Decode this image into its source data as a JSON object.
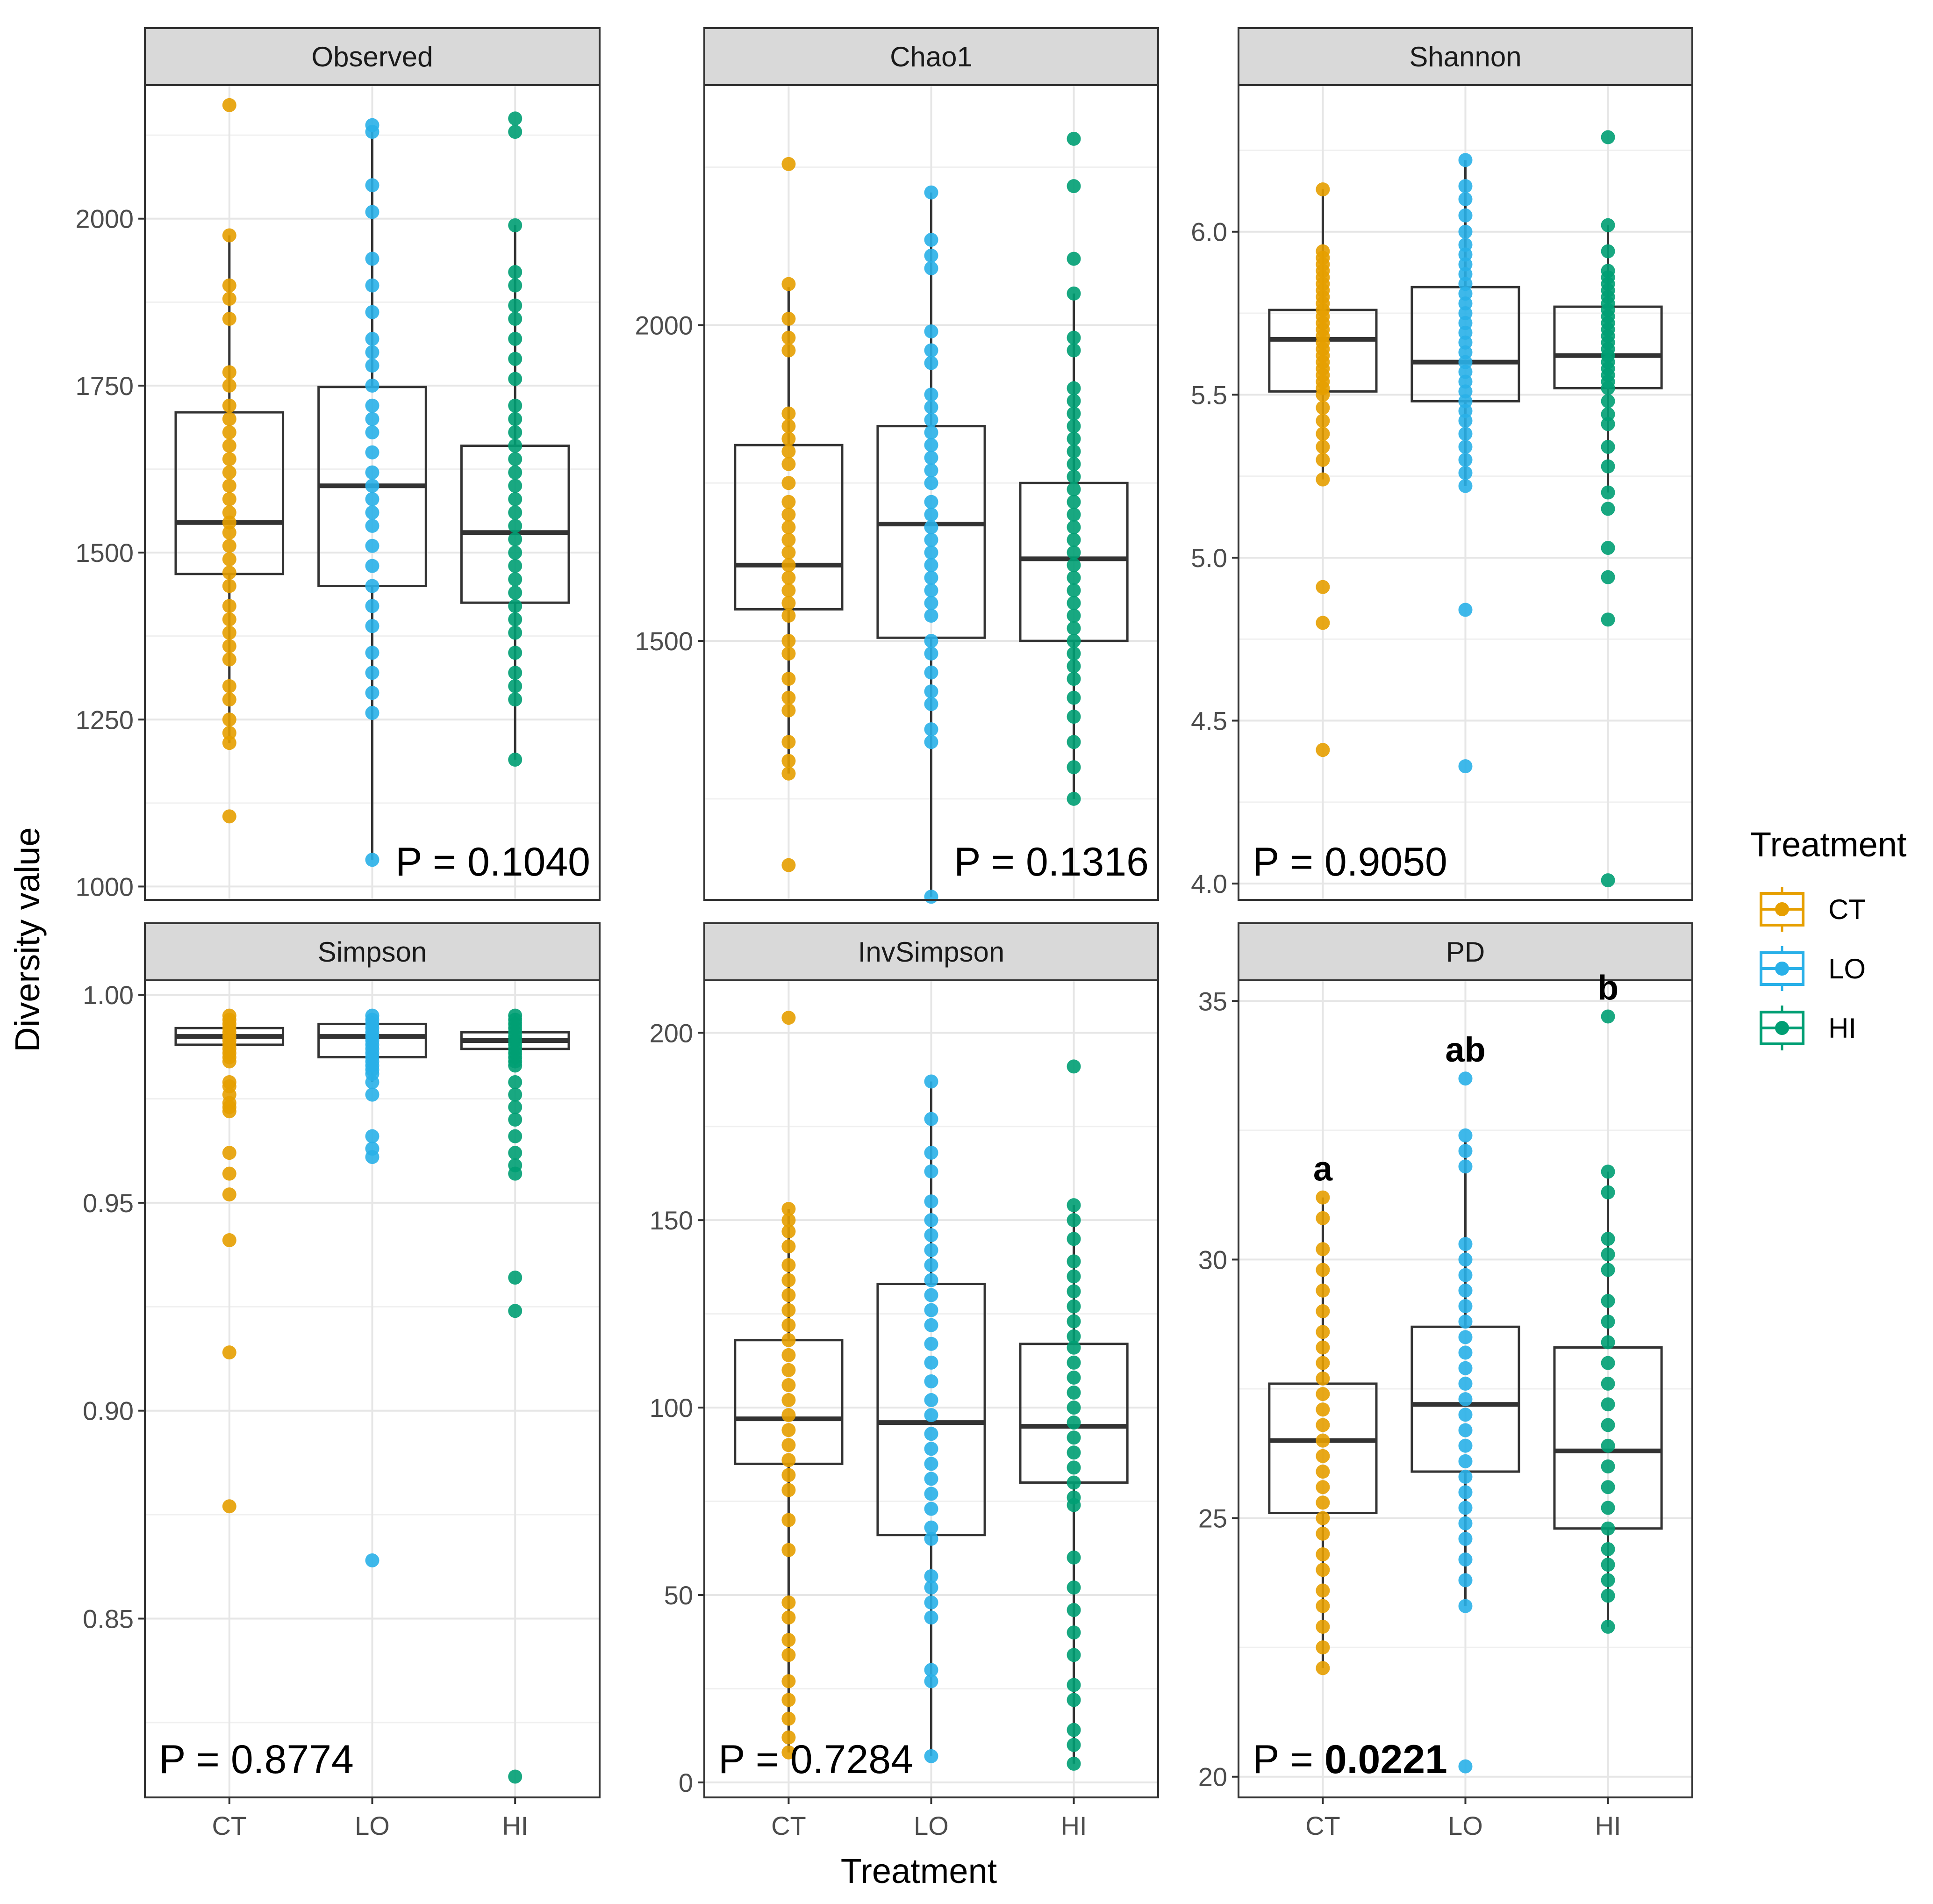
{
  "figure": {
    "y_axis_title": "Diversity value",
    "x_axis_title": "Treatment",
    "legend": {
      "title": "Treatment",
      "items": [
        {
          "label": "CT",
          "color": "#E69F00"
        },
        {
          "label": "LO",
          "color": "#29B0E8"
        },
        {
          "label": "HI",
          "color": "#009E73"
        }
      ]
    }
  },
  "chart_data": [
    {
      "type": "box",
      "title": "Observed",
      "categories": [
        "CT",
        "LO",
        "HI"
      ],
      "ylim": [
        980,
        2200
      ],
      "yticks": [
        1000,
        1250,
        1500,
        1750,
        2000
      ],
      "ytick_labels": [
        "1000",
        "1250",
        "1500",
        "1750",
        "2000"
      ],
      "p_prefix": "P = ",
      "p_value": "0.1040",
      "p_bold": false,
      "p_pos": "bottom-right",
      "groups": [
        {
          "name": "CT",
          "color": "#E69F00",
          "q1": 1468,
          "median": 1545,
          "q3": 1710,
          "whisker_low": 1215,
          "whisker_high": 1975,
          "points": [
            2170,
            1975,
            1900,
            1880,
            1850,
            1770,
            1750,
            1720,
            1700,
            1680,
            1660,
            1640,
            1620,
            1600,
            1580,
            1560,
            1545,
            1530,
            1510,
            1490,
            1470,
            1450,
            1420,
            1400,
            1380,
            1360,
            1340,
            1300,
            1280,
            1250,
            1230,
            1215,
            1105
          ]
        },
        {
          "name": "LO",
          "color": "#29B0E8",
          "q1": 1450,
          "median": 1600,
          "q3": 1748,
          "whisker_low": 1040,
          "whisker_high": 2130,
          "points": [
            2140,
            2130,
            2050,
            2010,
            1940,
            1900,
            1860,
            1820,
            1800,
            1780,
            1750,
            1720,
            1700,
            1680,
            1650,
            1620,
            1600,
            1580,
            1560,
            1540,
            1510,
            1480,
            1450,
            1420,
            1390,
            1350,
            1320,
            1290,
            1260,
            1040
          ]
        },
        {
          "name": "HI",
          "color": "#009E73",
          "q1": 1425,
          "median": 1530,
          "q3": 1660,
          "whisker_low": 1190,
          "whisker_high": 1990,
          "points": [
            2150,
            2130,
            1990,
            1920,
            1900,
            1870,
            1850,
            1820,
            1790,
            1760,
            1720,
            1700,
            1680,
            1660,
            1640,
            1620,
            1600,
            1580,
            1560,
            1540,
            1520,
            1500,
            1480,
            1460,
            1440,
            1420,
            1400,
            1380,
            1350,
            1320,
            1300,
            1280,
            1190
          ]
        }
      ]
    },
    {
      "type": "box",
      "title": "Chao1",
      "categories": [
        "CT",
        "LO",
        "HI"
      ],
      "ylim": [
        1090,
        2380
      ],
      "yticks": [
        1500,
        2000
      ],
      "ytick_labels": [
        "1500",
        "2000"
      ],
      "p_prefix": "P = ",
      "p_value": "0.1316",
      "p_bold": false,
      "p_pos": "bottom-right",
      "groups": [
        {
          "name": "CT",
          "color": "#E69F00",
          "q1": 1550,
          "median": 1620,
          "q3": 1810,
          "whisker_low": 1290,
          "whisker_high": 2060,
          "points": [
            2255,
            2065,
            2010,
            1980,
            1960,
            1860,
            1840,
            1820,
            1800,
            1780,
            1750,
            1720,
            1700,
            1680,
            1660,
            1640,
            1620,
            1600,
            1580,
            1560,
            1540,
            1500,
            1480,
            1440,
            1410,
            1390,
            1340,
            1310,
            1290,
            1145
          ]
        },
        {
          "name": "LO",
          "color": "#29B0E8",
          "q1": 1505,
          "median": 1685,
          "q3": 1840,
          "whisker_low": 1095,
          "whisker_high": 2210,
          "points": [
            2210,
            2135,
            2110,
            2090,
            1990,
            1960,
            1940,
            1890,
            1870,
            1850,
            1830,
            1810,
            1790,
            1770,
            1750,
            1720,
            1700,
            1680,
            1660,
            1640,
            1620,
            1600,
            1580,
            1560,
            1540,
            1500,
            1480,
            1450,
            1420,
            1400,
            1360,
            1340,
            1095
          ]
        },
        {
          "name": "HI",
          "color": "#009E73",
          "q1": 1500,
          "median": 1630,
          "q3": 1750,
          "whisker_low": 1250,
          "whisker_high": 2050,
          "points": [
            2295,
            2220,
            2105,
            2050,
            1980,
            1960,
            1900,
            1880,
            1860,
            1840,
            1820,
            1800,
            1780,
            1760,
            1740,
            1720,
            1700,
            1680,
            1660,
            1640,
            1620,
            1600,
            1580,
            1560,
            1540,
            1520,
            1500,
            1480,
            1460,
            1440,
            1410,
            1380,
            1340,
            1300,
            1250
          ]
        }
      ]
    },
    {
      "type": "box",
      "title": "Shannon",
      "categories": [
        "CT",
        "LO",
        "HI"
      ],
      "ylim": [
        3.95,
        6.45
      ],
      "yticks": [
        4.0,
        4.5,
        5.0,
        5.5,
        6.0
      ],
      "ytick_labels": [
        "4.0",
        "4.5",
        "5.0",
        "5.5",
        "6.0"
      ],
      "p_prefix": "P = ",
      "p_value": "0.9050",
      "p_bold": false,
      "p_pos": "bottom-left",
      "groups": [
        {
          "name": "CT",
          "color": "#E69F00",
          "q1": 5.51,
          "median": 5.67,
          "q3": 5.76,
          "whisker_low": 5.24,
          "whisker_high": 6.13,
          "points": [
            6.13,
            5.94,
            5.92,
            5.9,
            5.88,
            5.86,
            5.84,
            5.82,
            5.8,
            5.78,
            5.76,
            5.74,
            5.72,
            5.7,
            5.68,
            5.66,
            5.64,
            5.62,
            5.6,
            5.58,
            5.56,
            5.54,
            5.52,
            5.5,
            5.46,
            5.42,
            5.38,
            5.34,
            5.3,
            5.24,
            4.91,
            4.8,
            4.41
          ]
        },
        {
          "name": "LO",
          "color": "#29B0E8",
          "q1": 5.48,
          "median": 5.6,
          "q3": 5.83,
          "whisker_low": 5.22,
          "whisker_high": 6.22,
          "points": [
            6.22,
            6.14,
            6.1,
            6.05,
            6.0,
            5.96,
            5.93,
            5.9,
            5.87,
            5.84,
            5.81,
            5.78,
            5.75,
            5.72,
            5.69,
            5.66,
            5.63,
            5.6,
            5.57,
            5.54,
            5.51,
            5.48,
            5.45,
            5.42,
            5.38,
            5.34,
            5.3,
            5.26,
            5.22,
            4.84,
            4.36
          ]
        },
        {
          "name": "HI",
          "color": "#009E73",
          "q1": 5.52,
          "median": 5.62,
          "q3": 5.77,
          "whisker_low": 5.2,
          "whisker_high": 6.02,
          "points": [
            6.29,
            6.02,
            5.94,
            5.88,
            5.86,
            5.84,
            5.82,
            5.8,
            5.78,
            5.76,
            5.74,
            5.72,
            5.7,
            5.68,
            5.66,
            5.64,
            5.62,
            5.6,
            5.58,
            5.56,
            5.54,
            5.52,
            5.48,
            5.44,
            5.41,
            5.34,
            5.28,
            5.2,
            5.15,
            5.03,
            4.94,
            4.81,
            4.01
          ]
        }
      ]
    },
    {
      "type": "box",
      "title": "Simpson",
      "categories": [
        "CT",
        "LO",
        "HI"
      ],
      "ylim": [
        0.807,
        1.0035
      ],
      "yticks": [
        0.85,
        0.9,
        0.95,
        1.0
      ],
      "ytick_labels": [
        "0.85",
        "0.90",
        "0.95",
        "1.00"
      ],
      "p_prefix": "P = ",
      "p_value": "0.8774",
      "p_bold": false,
      "p_pos": "bottom-left",
      "groups": [
        {
          "name": "CT",
          "color": "#E69F00",
          "q1": 0.988,
          "median": 0.99,
          "q3": 0.992,
          "whisker_low": 0.984,
          "whisker_high": 0.995,
          "points": [
            0.995,
            0.994,
            0.993,
            0.992,
            0.991,
            0.99,
            0.989,
            0.988,
            0.987,
            0.986,
            0.985,
            0.984,
            0.979,
            0.978,
            0.976,
            0.974,
            0.973,
            0.972,
            0.962,
            0.957,
            0.952,
            0.941,
            0.914,
            0.877
          ]
        },
        {
          "name": "LO",
          "color": "#29B0E8",
          "q1": 0.985,
          "median": 0.99,
          "q3": 0.993,
          "whisker_low": 0.979,
          "whisker_high": 0.995,
          "points": [
            0.995,
            0.994,
            0.993,
            0.992,
            0.991,
            0.99,
            0.989,
            0.988,
            0.987,
            0.986,
            0.985,
            0.984,
            0.983,
            0.982,
            0.981,
            0.979,
            0.976,
            0.966,
            0.963,
            0.961,
            0.864
          ]
        },
        {
          "name": "HI",
          "color": "#009E73",
          "q1": 0.987,
          "median": 0.989,
          "q3": 0.991,
          "whisker_low": 0.983,
          "whisker_high": 0.995,
          "points": [
            0.995,
            0.994,
            0.993,
            0.992,
            0.991,
            0.99,
            0.989,
            0.988,
            0.987,
            0.986,
            0.985,
            0.984,
            0.983,
            0.979,
            0.976,
            0.973,
            0.97,
            0.966,
            0.962,
            0.959,
            0.957,
            0.932,
            0.924,
            0.812
          ]
        }
      ]
    },
    {
      "type": "box",
      "title": "InvSimpson",
      "categories": [
        "CT",
        "LO",
        "HI"
      ],
      "ylim": [
        -4,
        214
      ],
      "yticks": [
        0,
        50,
        100,
        150,
        200
      ],
      "ytick_labels": [
        "0",
        "50",
        "100",
        "150",
        "200"
      ],
      "p_prefix": "P = ",
      "p_value": "0.7284",
      "p_bold": false,
      "p_pos": "bottom-left",
      "groups": [
        {
          "name": "CT",
          "color": "#E69F00",
          "q1": 85,
          "median": 97,
          "q3": 118,
          "whisker_low": 8,
          "whisker_high": 153,
          "points": [
            204,
            153,
            150,
            147,
            143,
            138,
            134,
            130,
            126,
            122,
            118,
            114,
            110,
            106,
            102,
            98,
            94,
            90,
            86,
            82,
            78,
            70,
            62,
            48,
            44,
            38,
            34,
            27,
            22,
            17,
            12,
            8
          ]
        },
        {
          "name": "LO",
          "color": "#29B0E8",
          "q1": 66,
          "median": 96,
          "q3": 133,
          "whisker_low": 7,
          "whisker_high": 187,
          "points": [
            187,
            177,
            168,
            163,
            155,
            150,
            146,
            142,
            138,
            134,
            130,
            126,
            122,
            117,
            112,
            107,
            102,
            98,
            93,
            89,
            85,
            81,
            77,
            73,
            68,
            65,
            55,
            52,
            48,
            44,
            30,
            27,
            7
          ]
        },
        {
          "name": "HI",
          "color": "#009E73",
          "q1": 80,
          "median": 95,
          "q3": 117,
          "whisker_low": 5,
          "whisker_high": 154,
          "points": [
            191,
            154,
            150,
            145,
            139,
            135,
            131,
            127,
            123,
            119,
            116,
            112,
            108,
            104,
            100,
            96,
            92,
            88,
            84,
            80,
            76,
            74,
            60,
            52,
            46,
            40,
            34,
            26,
            22,
            14,
            10,
            5
          ]
        }
      ]
    },
    {
      "type": "box",
      "title": "PD",
      "categories": [
        "CT",
        "LO",
        "HI"
      ],
      "ylim": [
        19.6,
        35.4
      ],
      "yticks": [
        20,
        25,
        30,
        35
      ],
      "ytick_labels": [
        "20",
        "25",
        "30",
        "35"
      ],
      "p_prefix": "P = ",
      "p_value": "0.0221",
      "p_bold": true,
      "p_pos": "bottom-left",
      "significance_letters": [
        "a",
        "ab",
        "b"
      ],
      "groups": [
        {
          "name": "CT",
          "color": "#E69F00",
          "q1": 25.1,
          "median": 26.5,
          "q3": 27.6,
          "whisker_low": 22.1,
          "whisker_high": 31.2,
          "points": [
            31.2,
            30.8,
            30.2,
            29.8,
            29.4,
            29.0,
            28.6,
            28.3,
            28.0,
            27.7,
            27.4,
            27.1,
            26.8,
            26.5,
            26.2,
            25.9,
            25.6,
            25.3,
            25.0,
            24.7,
            24.3,
            24.0,
            23.6,
            23.3,
            22.9,
            22.5,
            22.1
          ]
        },
        {
          "name": "LO",
          "color": "#29B0E8",
          "q1": 25.9,
          "median": 27.2,
          "q3": 28.7,
          "whisker_low": 23.3,
          "whisker_high": 32.3,
          "points": [
            33.5,
            32.4,
            32.1,
            31.8,
            30.3,
            30.0,
            29.7,
            29.4,
            29.1,
            28.8,
            28.5,
            28.2,
            27.9,
            27.6,
            27.3,
            27.0,
            26.7,
            26.4,
            26.1,
            25.8,
            25.5,
            25.2,
            24.9,
            24.6,
            24.2,
            23.8,
            23.3,
            20.2
          ]
        },
        {
          "name": "HI",
          "color": "#009E73",
          "q1": 24.8,
          "median": 26.3,
          "q3": 28.3,
          "whisker_low": 22.9,
          "whisker_high": 31.7,
          "points": [
            34.7,
            31.7,
            31.3,
            30.4,
            30.1,
            29.8,
            29.2,
            28.8,
            28.4,
            28.0,
            27.6,
            27.2,
            26.8,
            26.4,
            26.0,
            25.6,
            25.2,
            24.8,
            24.4,
            24.1,
            23.8,
            23.5,
            22.9
          ]
        }
      ]
    }
  ]
}
